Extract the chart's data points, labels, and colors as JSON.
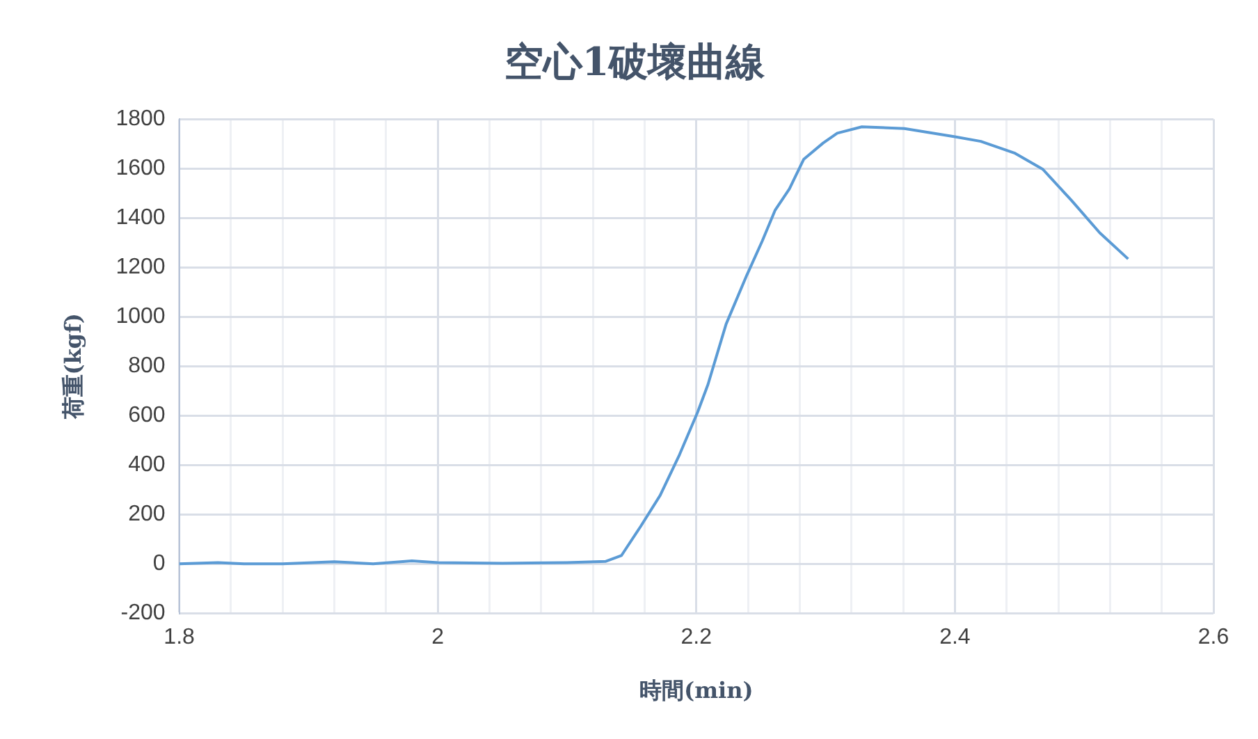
{
  "chart_data": {
    "type": "line",
    "title": "空心1破壞曲線",
    "xlabel": "時間(min)",
    "ylabel": "荷重(kgf)",
    "x": [
      1.8,
      1.83,
      1.85,
      1.88,
      1.92,
      1.95,
      1.98,
      2.0,
      2.05,
      2.1,
      2.13,
      2.142,
      2.157,
      2.172,
      2.187,
      2.201,
      2.209,
      2.223,
      2.239,
      2.251,
      2.261,
      2.272,
      2.283,
      2.298,
      2.309,
      2.328,
      2.361,
      2.4,
      2.42,
      2.446,
      2.468,
      2.49,
      2.512,
      2.534
    ],
    "series": [
      {
        "color": "#5b9bd5",
        "values": [
          0,
          5,
          0,
          0,
          8,
          0,
          12,
          5,
          2,
          5,
          10,
          33,
          152,
          277,
          442,
          614,
          726,
          970,
          1168,
          1307,
          1432,
          1518,
          1637,
          1703,
          1743,
          1769,
          1762,
          1729,
          1710,
          1663,
          1597,
          1472,
          1340,
          1234
        ]
      }
    ],
    "xlim": [
      1.8,
      2.6
    ],
    "ylim": [
      -200,
      1800
    ],
    "xticks": [
      1.8,
      {
        "value": 1.84,
        "label": null
      },
      {
        "value": 1.88,
        "label": null
      },
      {
        "value": 1.92,
        "label": null
      },
      {
        "value": 1.96,
        "label": null
      },
      2,
      {
        "value": 2.04,
        "label": null
      },
      {
        "value": 2.08,
        "label": null
      },
      {
        "value": 2.12,
        "label": null
      },
      {
        "value": 2.16,
        "label": null
      },
      2.2,
      {
        "value": 2.24,
        "label": null
      },
      {
        "value": 2.28,
        "label": null
      },
      {
        "value": 2.32,
        "label": null
      },
      {
        "value": 2.36,
        "label": null
      },
      2.4,
      {
        "value": 2.44,
        "label": null
      },
      {
        "value": 2.48,
        "label": null
      },
      {
        "value": 2.52,
        "label": null
      },
      {
        "value": 2.56,
        "label": null
      },
      2.6
    ],
    "yticks": [
      -200,
      0,
      200,
      400,
      600,
      800,
      1000,
      1200,
      1400,
      1600,
      1800
    ],
    "grid": true,
    "marker": "none"
  }
}
